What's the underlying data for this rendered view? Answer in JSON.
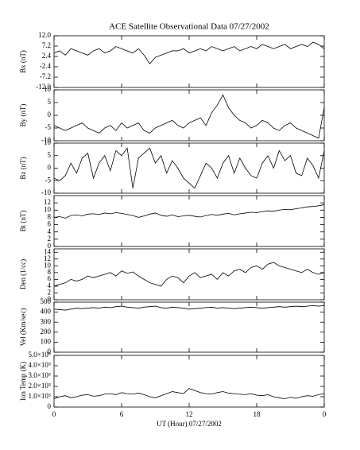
{
  "chart_data": [
    {
      "type": "line",
      "title": "ACE Satellite Observational Data  07/27/2002",
      "ylabel": "Bx (nT)",
      "color": "#000000",
      "x": [
        0,
        0.5,
        1,
        1.5,
        2,
        2.5,
        3,
        3.5,
        4,
        4.5,
        5,
        5.5,
        6,
        6.5,
        7,
        7.5,
        8,
        8.5,
        9,
        9.5,
        10,
        10.5,
        11,
        11.5,
        12,
        12.5,
        13,
        13.5,
        14,
        14.5,
        15,
        15.5,
        16,
        16.5,
        17,
        17.5,
        18,
        18.5,
        19,
        19.5,
        20,
        20.5,
        21,
        21.5,
        22,
        22.5,
        23,
        23.5,
        24
      ],
      "values": [
        4,
        5,
        3,
        6,
        5,
        4,
        3,
        5,
        6,
        4,
        5,
        7,
        6,
        5,
        4,
        6,
        3,
        -1,
        2,
        3,
        4,
        5,
        5,
        6,
        4,
        5,
        6,
        5,
        7,
        6,
        5,
        6,
        7,
        5,
        6,
        7,
        6,
        8,
        7,
        6,
        7,
        8,
        6,
        7,
        8,
        7,
        9,
        8,
        6
      ],
      "xlim": [
        0,
        24
      ],
      "ylim": [
        -12,
        12
      ],
      "yticks": [
        {
          "value": -12,
          "label": "-12.0"
        },
        -7.2,
        -2.4,
        2.4,
        7.2,
        {
          "value": 12,
          "label": "12.0"
        }
      ]
    },
    {
      "type": "line",
      "ylabel": "By (nT)",
      "color": "#000000",
      "x": [
        0,
        0.5,
        1,
        1.5,
        2,
        2.5,
        3,
        3.5,
        4,
        4.5,
        5,
        5.5,
        6,
        6.5,
        7,
        7.5,
        8,
        8.5,
        9,
        9.5,
        10,
        10.5,
        11,
        11.5,
        12,
        12.5,
        13,
        13.5,
        14,
        14.5,
        15,
        15.5,
        16,
        16.5,
        17,
        17.5,
        18,
        18.5,
        19,
        19.5,
        20,
        20.5,
        21,
        21.5,
        22,
        22.5,
        23,
        23.5,
        24
      ],
      "values": [
        -4,
        -5,
        -6,
        -5,
        -4,
        -3,
        -5,
        -6,
        -7,
        -5,
        -4,
        -6,
        -3,
        -5,
        -4,
        -3,
        -6,
        -7,
        -5,
        -4,
        -3,
        -2,
        -4,
        -5,
        -3,
        -2,
        -1,
        -4,
        1,
        4,
        8,
        3,
        0,
        -2,
        -3,
        -5,
        -4,
        -2,
        -3,
        -5,
        -6,
        -4,
        -3,
        -5,
        -6,
        -7,
        -8,
        -9,
        3
      ],
      "xlim": [
        0,
        24
      ],
      "ylim": [
        -10,
        10
      ],
      "yticks": [
        -10,
        -5,
        0,
        5,
        10
      ]
    },
    {
      "type": "line",
      "ylabel": "Bz (nT)",
      "color": "#000000",
      "x": [
        0,
        0.5,
        1,
        1.5,
        2,
        2.5,
        3,
        3.5,
        4,
        4.5,
        5,
        5.5,
        6,
        6.5,
        7,
        7.5,
        8,
        8.5,
        9,
        9.5,
        10,
        10.5,
        11,
        11.5,
        12,
        12.5,
        13,
        13.5,
        14,
        14.5,
        15,
        15.5,
        16,
        16.5,
        17,
        17.5,
        18,
        18.5,
        19,
        19.5,
        20,
        20.5,
        21,
        21.5,
        22,
        22.5,
        23,
        23.5,
        24
      ],
      "values": [
        -4,
        -5,
        -3,
        2,
        -2,
        4,
        6,
        -4,
        2,
        5,
        -1,
        7,
        5,
        8,
        -8,
        4,
        6,
        8,
        2,
        5,
        -2,
        3,
        0,
        -4,
        -6,
        -8,
        -3,
        2,
        0,
        -4,
        2,
        5,
        -2,
        4,
        0,
        -3,
        -4,
        2,
        5,
        0,
        7,
        3,
        5,
        -2,
        -3,
        4,
        1,
        -4,
        7
      ],
      "xlim": [
        0,
        24
      ],
      "ylim": [
        -10,
        10
      ],
      "yticks": [
        -10,
        -5,
        0,
        5,
        10
      ]
    },
    {
      "type": "line",
      "ylabel": "Bt (nT)",
      "color": "#000000",
      "x": [
        0,
        0.5,
        1,
        1.5,
        2,
        2.5,
        3,
        3.5,
        4,
        4.5,
        5,
        5.5,
        6,
        6.5,
        7,
        7.5,
        8,
        8.5,
        9,
        9.5,
        10,
        10.5,
        11,
        11.5,
        12,
        12.5,
        13,
        13.5,
        14,
        14.5,
        15,
        15.5,
        16,
        16.5,
        17,
        17.5,
        18,
        18.5,
        19,
        19.5,
        20,
        20.5,
        21,
        21.5,
        22,
        22.5,
        23,
        23.5,
        24
      ],
      "values": [
        8,
        8.2,
        7.8,
        8.5,
        8.7,
        8.4,
        8.9,
        9,
        8.8,
        9.2,
        9,
        9.3,
        9.1,
        8.8,
        8.5,
        8,
        8.4,
        8.9,
        9.2,
        8.6,
        8.3,
        8.7,
        8.2,
        8.4,
        8.6,
        8.3,
        8.1,
        8.5,
        8.8,
        8.6,
        8.9,
        9.1,
        8.7,
        9,
        9.2,
        9.4,
        9.3,
        9.6,
        9.8,
        9.7,
        10,
        10.2,
        10.1,
        10.4,
        10.6,
        10.9,
        11,
        11.2,
        11.5
      ],
      "xlim": [
        0,
        24
      ],
      "ylim": [
        0,
        14
      ],
      "yticks": [
        0,
        2,
        4,
        6,
        8,
        10,
        12
      ]
    },
    {
      "type": "line",
      "ylabel": "Den (1/cc)",
      "color": "#000000",
      "x": [
        0,
        0.5,
        1,
        1.5,
        2,
        2.5,
        3,
        3.5,
        4,
        4.5,
        5,
        5.5,
        6,
        6.5,
        7,
        7.5,
        8,
        8.5,
        9,
        9.5,
        10,
        10.5,
        11,
        11.5,
        12,
        12.5,
        13,
        13.5,
        14,
        14.5,
        15,
        15.5,
        16,
        16.5,
        17,
        17.5,
        18,
        18.5,
        19,
        19.5,
        20,
        20.5,
        21,
        21.5,
        22,
        22.5,
        23,
        23.5,
        24
      ],
      "values": [
        4,
        4.5,
        5,
        6,
        5.5,
        6,
        7,
        6.5,
        7,
        7.5,
        8,
        7,
        8.5,
        7.8,
        8.2,
        7,
        6,
        5,
        4.5,
        4,
        6,
        7,
        6.5,
        5,
        7,
        8,
        6.5,
        7,
        7.5,
        6,
        8,
        7,
        8.5,
        9,
        8,
        9.5,
        10,
        9,
        10.5,
        11,
        10,
        9.5,
        9,
        8.5,
        8,
        9,
        8,
        7.5,
        8
      ],
      "xlim": [
        0,
        24
      ],
      "ylim": [
        0,
        15
      ],
      "yticks": [
        0,
        2,
        4,
        6,
        8,
        10,
        12,
        14
      ]
    },
    {
      "type": "line",
      "ylabel": "Vel (Km/sec)",
      "color": "#000000",
      "x": [
        0,
        0.5,
        1,
        1.5,
        2,
        2.5,
        3,
        3.5,
        4,
        4.5,
        5,
        5.5,
        6,
        6.5,
        7,
        7.5,
        8,
        8.5,
        9,
        9.5,
        10,
        10.5,
        11,
        11.5,
        12,
        12.5,
        13,
        13.5,
        14,
        14.5,
        15,
        15.5,
        16,
        16.5,
        17,
        17.5,
        18,
        18.5,
        19,
        19.5,
        20,
        20.5,
        21,
        21.5,
        22,
        22.5,
        23,
        23.5,
        24
      ],
      "values": [
        430,
        425,
        420,
        430,
        440,
        435,
        440,
        445,
        440,
        450,
        445,
        455,
        460,
        450,
        445,
        440,
        450,
        455,
        460,
        445,
        440,
        450,
        445,
        440,
        430,
        435,
        440,
        445,
        450,
        440,
        445,
        440,
        435,
        440,
        445,
        450,
        445,
        440,
        445,
        450,
        455,
        450,
        455,
        460,
        455,
        460,
        465,
        460,
        465
      ],
      "xlim": [
        0,
        24
      ],
      "ylim": [
        0,
        500
      ],
      "yticks": [
        0,
        100,
        200,
        300,
        400,
        500
      ]
    },
    {
      "type": "line",
      "ylabel": "Ion Temp (K)",
      "xlabel": "UT (Hour)  07/27/2002",
      "color": "#000000",
      "x": [
        0,
        0.5,
        1,
        1.5,
        2,
        2.5,
        3,
        3.5,
        4,
        4.5,
        5,
        5.5,
        6,
        6.5,
        7,
        7.5,
        8,
        8.5,
        9,
        9.5,
        10,
        10.5,
        11,
        11.5,
        12,
        12.5,
        13,
        13.5,
        14,
        14.5,
        15,
        15.5,
        16,
        16.5,
        17,
        17.5,
        18,
        18.5,
        19,
        19.5,
        20,
        20.5,
        21,
        21.5,
        22,
        22.5,
        23,
        23.5,
        24
      ],
      "values": [
        80000,
        100000,
        110000,
        90000,
        100000,
        115000,
        120000,
        105000,
        110000,
        125000,
        130000,
        120000,
        140000,
        130000,
        125000,
        135000,
        120000,
        100000,
        90000,
        110000,
        130000,
        150000,
        140000,
        130000,
        180000,
        160000,
        140000,
        130000,
        125000,
        140000,
        150000,
        135000,
        130000,
        125000,
        120000,
        130000,
        115000,
        110000,
        120000,
        100000,
        90000,
        80000,
        95000,
        85000,
        100000,
        110000,
        105000,
        120000,
        130000
      ],
      "xlim": [
        0,
        24
      ],
      "ylim": [
        0,
        500000
      ],
      "yticks": [
        0,
        {
          "value": 100000,
          "label": "1.0×10⁵"
        },
        {
          "value": 200000,
          "label": "2.0×10⁵"
        },
        {
          "value": 300000,
          "label": "3.0×10⁵"
        },
        {
          "value": 400000,
          "label": "4.0×10⁵"
        },
        {
          "value": 500000,
          "label": "5.0×10⁵"
        }
      ],
      "xticks": [
        0,
        6,
        12,
        18,
        {
          "value": 24,
          "label": "0"
        }
      ]
    }
  ]
}
